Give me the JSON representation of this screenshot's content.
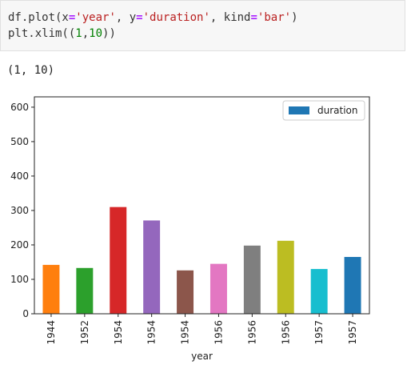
{
  "code": {
    "line1": [
      {
        "t": "df.plot(x",
        "c": "tok-p"
      },
      {
        "t": "=",
        "c": "tok-k"
      },
      {
        "t": "'year'",
        "c": "tok-s"
      },
      {
        "t": ", y",
        "c": "tok-p"
      },
      {
        "t": "=",
        "c": "tok-k"
      },
      {
        "t": "'duration'",
        "c": "tok-s"
      },
      {
        "t": ", kind",
        "c": "tok-p"
      },
      {
        "t": "=",
        "c": "tok-k"
      },
      {
        "t": "'bar'",
        "c": "tok-s"
      },
      {
        "t": ")",
        "c": "tok-p"
      }
    ],
    "line2": [
      {
        "t": "plt.xlim((",
        "c": "tok-p"
      },
      {
        "t": "1",
        "c": "tok-n"
      },
      {
        "t": ",",
        "c": "tok-p"
      },
      {
        "t": "10",
        "c": "tok-n"
      },
      {
        "t": "))",
        "c": "tok-p"
      }
    ]
  },
  "output": {
    "text": "(1, 10)"
  },
  "chart_data": {
    "type": "bar",
    "categories": [
      "1944",
      "1952",
      "1954",
      "1954",
      "1954",
      "1956",
      "1956",
      "1956",
      "1957",
      "1957"
    ],
    "series": [
      {
        "name": "duration",
        "values": [
          142,
          133,
          310,
          271,
          126,
          145,
          198,
          212,
          130,
          165
        ]
      }
    ],
    "bar_colors": [
      "#ff7f0e",
      "#2ca02c",
      "#d62728",
      "#9467bd",
      "#8c564b",
      "#e377c2",
      "#7f7f7f",
      "#bcbd22",
      "#17becf",
      "#1f77b4"
    ],
    "legend_color": "#1f77b4",
    "xlabel": "year",
    "ylabel": "",
    "ylim": [
      0,
      630
    ],
    "yticks": [
      0,
      100,
      200,
      300,
      400,
      500,
      600
    ],
    "xlim": [
      1,
      10
    ],
    "legend_position": "top-right",
    "grid": false
  }
}
